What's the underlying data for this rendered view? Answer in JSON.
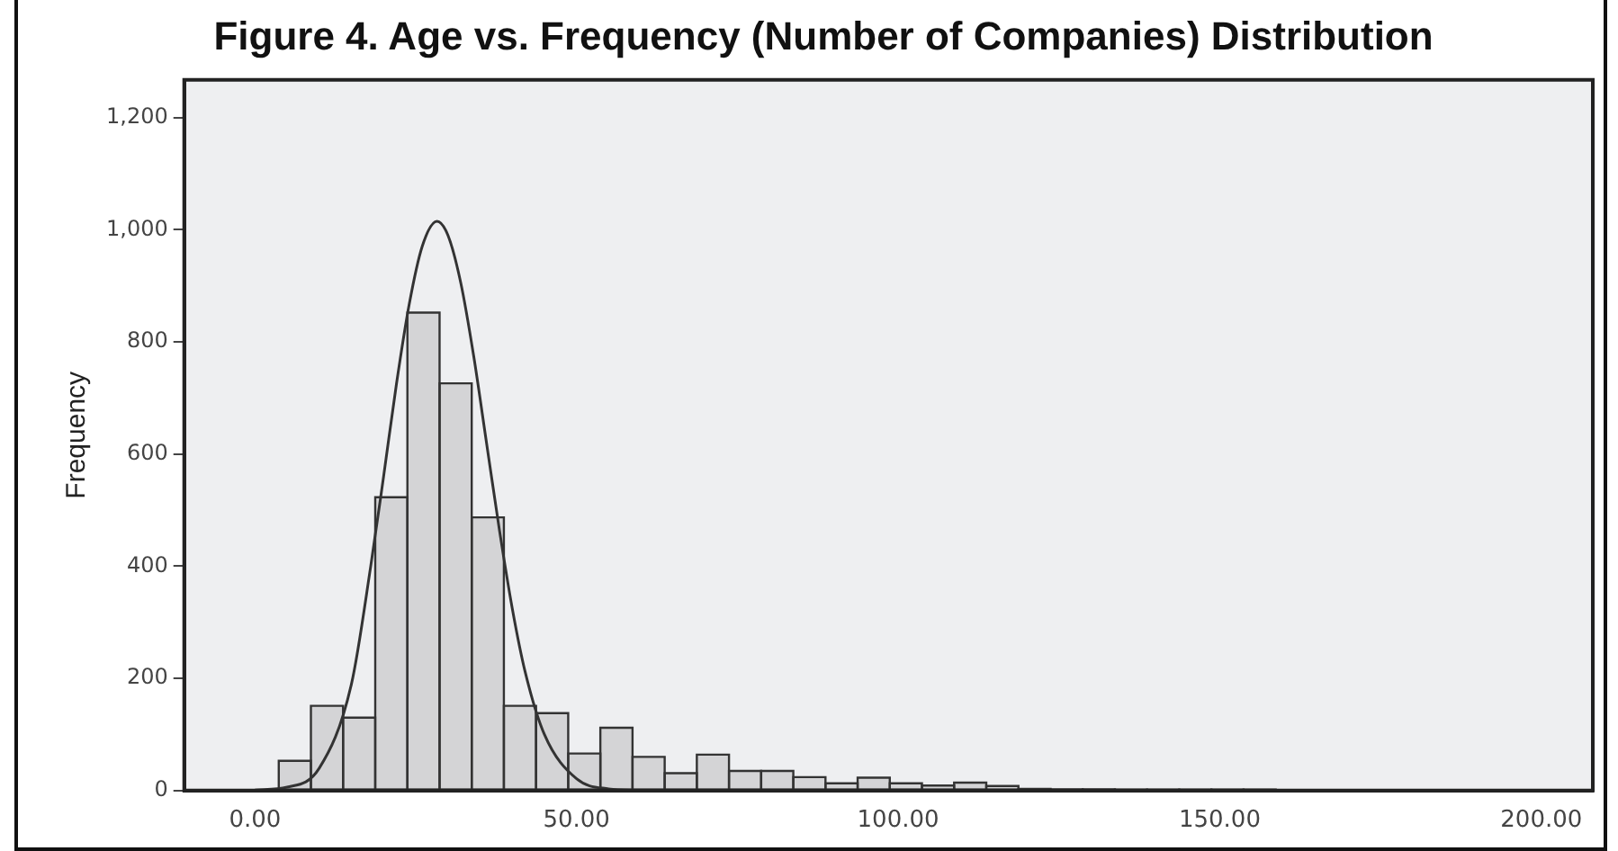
{
  "chart_data": {
    "type": "histogram",
    "title": "Figure 4. Age vs. Frequency (Number of Companies) Distribution",
    "ylabel": "Frequency",
    "bins": [
      3.7,
      8.7,
      13.7,
      18.7,
      23.7,
      28.7,
      33.7,
      38.7,
      43.7,
      48.7,
      53.7,
      58.7,
      63.7,
      68.7,
      73.7,
      78.7,
      83.7,
      88.7,
      93.7,
      98.7,
      103.7,
      108.7,
      113.7,
      118.7,
      123.7,
      128.7,
      133.7,
      138.7,
      143.7,
      148.7,
      153.7,
      158.7
    ],
    "values": [
      53,
      151,
      130,
      523,
      852,
      726,
      487,
      151,
      138,
      66,
      112,
      60,
      31,
      64,
      35,
      35,
      24,
      13,
      23,
      13,
      9,
      14,
      8,
      3,
      2,
      2,
      1,
      1,
      1,
      1,
      1
    ],
    "color": "#d4d4d6",
    "series": [
      {
        "type": "line",
        "color": "#333333",
        "x": [
          0,
          5,
          10,
          15,
          18,
          20,
          22,
          24,
          26,
          28.3,
          30,
          32,
          34,
          36,
          38,
          40,
          42,
          45,
          50,
          55,
          60
        ],
        "values": [
          1,
          6,
          40,
          190,
          400,
          560,
          725,
          868,
          970,
          1015,
          990,
          905,
          775,
          620,
          465,
          325,
          212,
          100,
          21,
          3,
          0
        ]
      }
    ],
    "xlim": [
      -11,
      208
    ],
    "xticks": [
      {
        "value": 0,
        "label": "0.00"
      },
      {
        "value": 50,
        "label": "50.00"
      },
      {
        "value": 100,
        "label": "100.00"
      },
      {
        "value": 150,
        "label": "150.00"
      },
      {
        "value": 200,
        "label": "200.00"
      }
    ],
    "ylim": [
      0,
      1267
    ],
    "yticks": [
      0,
      200,
      400,
      600,
      800,
      {
        "value": 1000,
        "label": "1,000"
      },
      {
        "value": 1200,
        "label": "1,200"
      }
    ],
    "grid": false,
    "legend": false,
    "marker": "none"
  }
}
